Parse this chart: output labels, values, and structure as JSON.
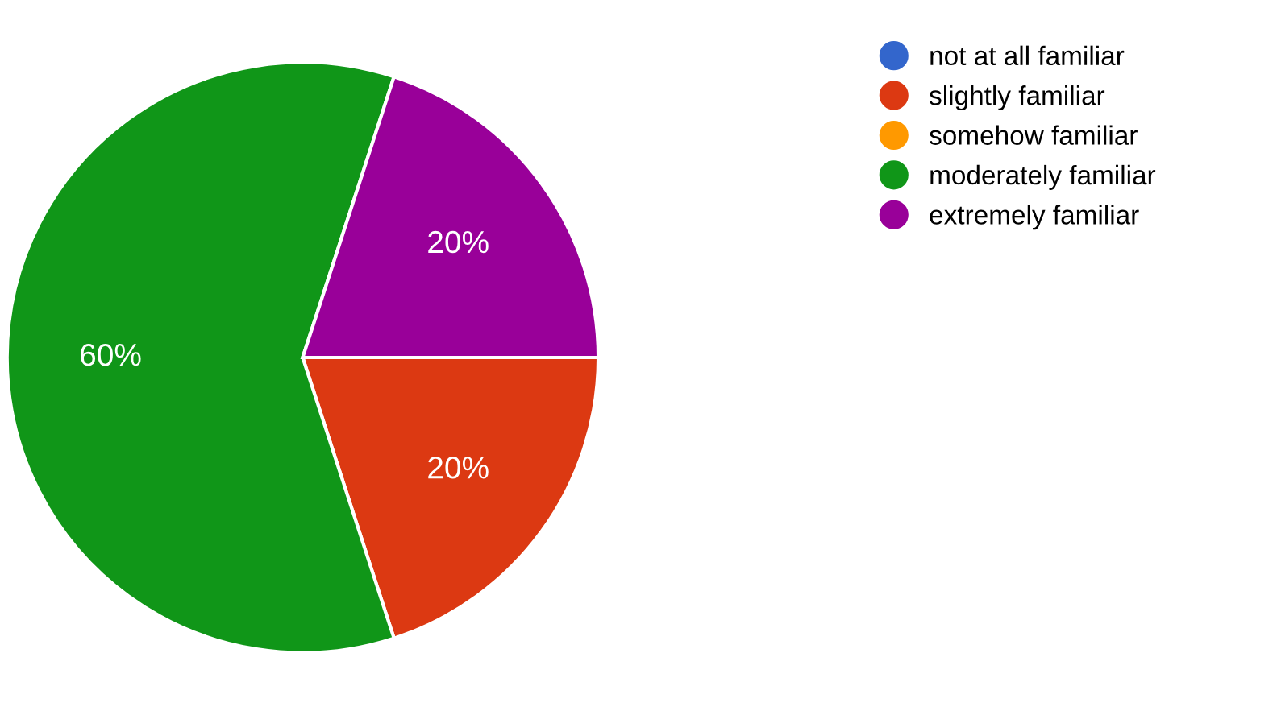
{
  "chart_data": {
    "type": "pie",
    "categories": [
      "not at all familiar",
      "slightly familiar",
      "somehow familiar",
      "moderately familiar",
      "extremely familiar"
    ],
    "values": [
      0,
      20,
      0,
      60,
      20
    ],
    "colors": [
      "#3366cc",
      "#dc3912",
      "#ff9900",
      "#109618",
      "#990099"
    ],
    "value_labels": [
      null,
      "20%",
      null,
      "60%",
      "20%"
    ],
    "legend": "top right"
  }
}
